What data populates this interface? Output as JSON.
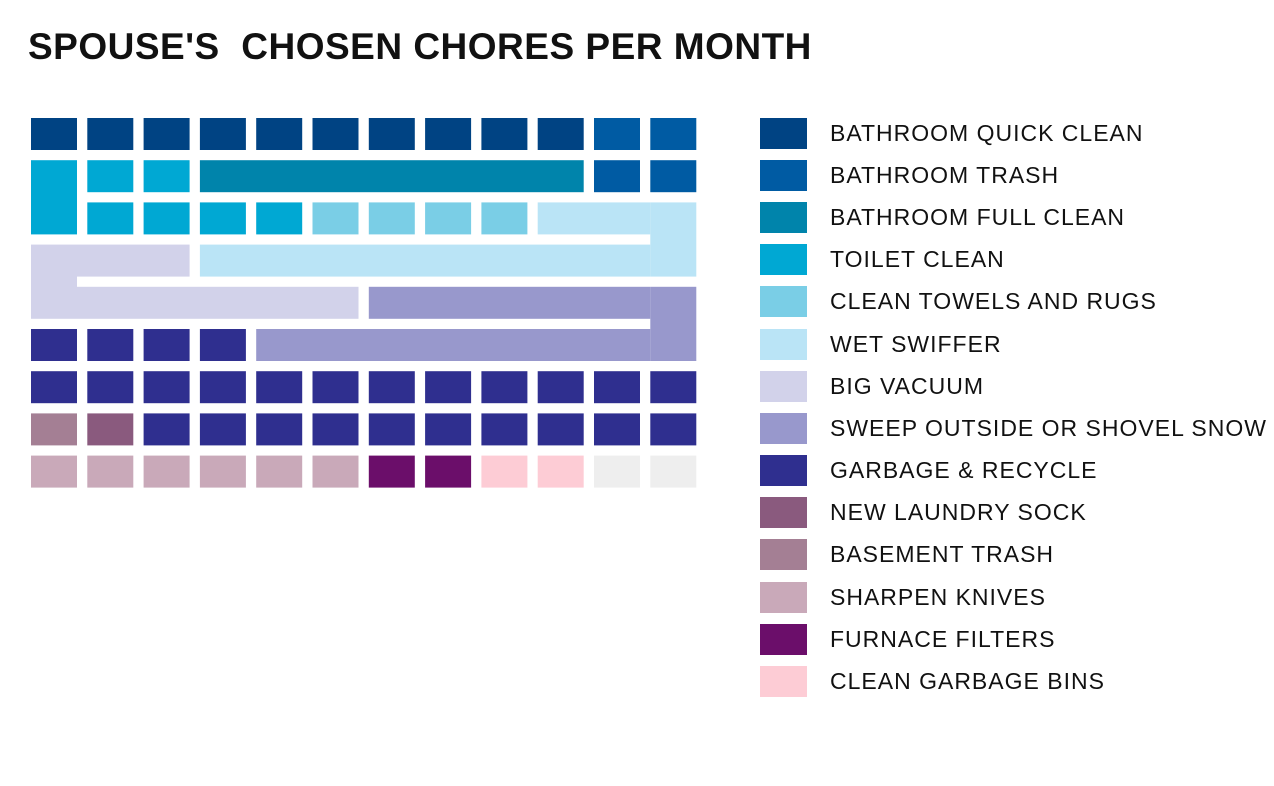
{
  "chart_data": {
    "type": "waffle",
    "title": "SPOUSE'S  CHOSEN CHORES PER MONTH",
    "unit": "chore per month",
    "grid_columns": 12,
    "legend_position": "right",
    "categories": [
      {
        "name": "BATHROOM QUICK CLEAN",
        "color": "#004383",
        "value": 10
      },
      {
        "name": "BATHROOM TRASH",
        "color": "#005BA3",
        "value": 4
      },
      {
        "name": "BATHROOM FULL CLEAN",
        "color": "#0084AB",
        "value": 7
      },
      {
        "name": "TOILET CLEAN",
        "color": "#00A8D3",
        "value": 7
      },
      {
        "name": "CLEAN TOWELS AND RUGS",
        "color": "#7ACEE6",
        "value": 4
      },
      {
        "name": "WET SWIFFER",
        "color": "#BAE4F6",
        "value": 13
      },
      {
        "name": "BIG VACUUM",
        "color": "#D2D2EA",
        "value": 9
      },
      {
        "name": "SWEEP OUTSIDE OR SHOVEL SNOW",
        "color": "#9898CC",
        "value": 14
      },
      {
        "name": "GARBAGE & RECYCLE",
        "color": "#2F2F8F",
        "value": 26
      },
      {
        "name": "NEW LAUNDRY SOCK",
        "color": "#8A5A7E",
        "value": 1
      },
      {
        "name": "BASEMENT TRASH",
        "color": "#A47F94",
        "value": 1
      },
      {
        "name": "SHARPEN KNIVES",
        "color": "#C9A9B9",
        "value": 6
      },
      {
        "name": "FURNACE FILTERS",
        "color": "#6B0E6A",
        "value": 2
      },
      {
        "name": "CLEAN GARBAGE BINS",
        "color": "#FDCCD5",
        "value": 2
      }
    ],
    "empty_cells": 2,
    "empty_color": "#EEEEEE"
  }
}
